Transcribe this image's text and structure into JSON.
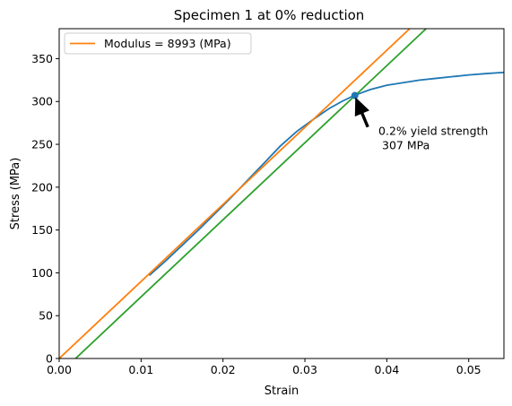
{
  "chart_data": {
    "type": "line",
    "title": "Specimen 1 at 0% reduction",
    "xlabel": "Strain",
    "ylabel": "Stress (MPa)",
    "xlim": [
      0,
      0.0543
    ],
    "ylim": [
      0,
      385
    ],
    "x_ticks": [
      0.0,
      0.01,
      0.02,
      0.03,
      0.04,
      0.05
    ],
    "x_tick_labels": [
      "0.00",
      "0.01",
      "0.02",
      "0.03",
      "0.04",
      "0.05"
    ],
    "y_ticks": [
      0,
      50,
      100,
      150,
      200,
      250,
      300,
      350
    ],
    "y_tick_labels": [
      "0",
      "50",
      "100",
      "150",
      "200",
      "250",
      "300",
      "350"
    ],
    "grid": false,
    "legend": {
      "placement": "top-left",
      "entries": [
        "Modulus = 8993 (MPa)"
      ]
    },
    "series": [
      {
        "color": "#1f77b4",
        "x": [
          0.011,
          0.013,
          0.015,
          0.017,
          0.019,
          0.021,
          0.023,
          0.025,
          0.027,
          0.029,
          0.031,
          0.033,
          0.0345,
          0.036,
          0.038,
          0.04,
          0.042,
          0.044,
          0.046,
          0.048,
          0.05,
          0.052,
          0.0543
        ],
        "y": [
          97,
          114,
          132,
          150,
          169,
          188,
          208,
          228,
          248,
          265,
          279,
          292,
          300,
          307,
          314,
          319,
          322,
          325,
          327,
          329,
          331,
          332.5,
          334
        ]
      },
      {
        "name": "Modulus = 8993 (MPa)",
        "color": "#ff7f0e",
        "x": [
          0,
          0.0428
        ],
        "y": [
          0,
          385
        ]
      },
      {
        "color": "#2ca02c",
        "x": [
          0.002,
          0.0448
        ],
        "y": [
          0,
          385
        ]
      }
    ],
    "yield_point": {
      "x": 0.0361,
      "y": 307,
      "color": "#1f77b4"
    },
    "annotation": {
      "text": [
        "0.2% yield strength",
        " 307 MPa"
      ],
      "xy": [
        0.0361,
        307
      ],
      "xytext": [
        0.0381,
        256
      ]
    }
  }
}
